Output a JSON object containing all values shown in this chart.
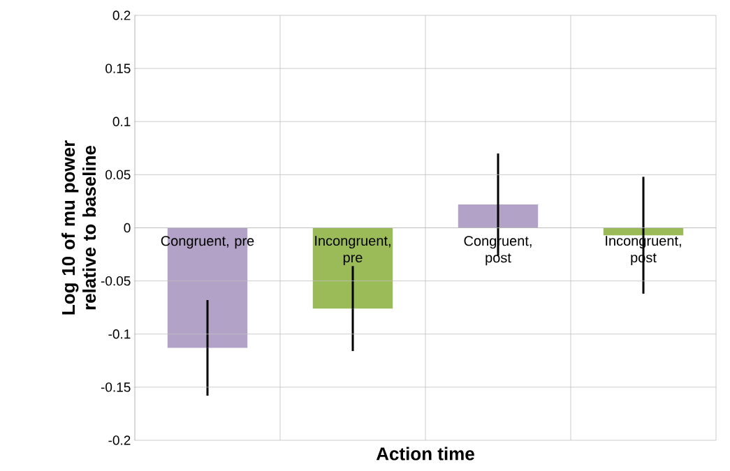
{
  "chart_data": {
    "type": "bar",
    "xlabel": "Action time",
    "ylabel": "Log 10 of mu power relative to baseline",
    "categories": [
      "Congruent, pre",
      "Incongruent, pre",
      "Congruent, post",
      "Incongruent, post"
    ],
    "values": [
      -0.113,
      -0.076,
      0.022,
      -0.007
    ],
    "errors": [
      0.045,
      0.04,
      0.048,
      0.055
    ],
    "colors": [
      "#b3a2c7",
      "#9bbb59",
      "#b3a2c7",
      "#9bbb59"
    ],
    "ylim": [
      -0.2,
      0.2
    ],
    "yticks": [
      -0.2,
      -0.15,
      -0.1,
      -0.05,
      0,
      0.05,
      0.1,
      0.15,
      0.2
    ],
    "grid": true
  }
}
